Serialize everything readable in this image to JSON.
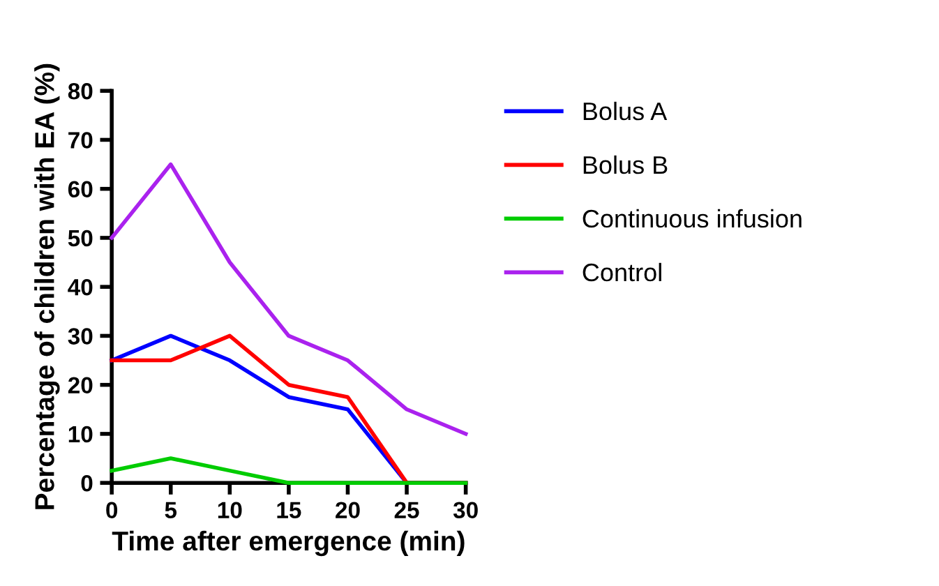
{
  "chart_data": {
    "type": "line",
    "xlabel": "Time after emergence (min)",
    "ylabel": "Percentage of children with EA (%)",
    "x": [
      0,
      5,
      10,
      15,
      20,
      25,
      30
    ],
    "series": [
      {
        "name": "Bolus A",
        "color": "#0000ff",
        "values": [
          25,
          30,
          25,
          17.5,
          15,
          0,
          0
        ]
      },
      {
        "name": "Bolus B",
        "color": "#ff0000",
        "values": [
          25,
          25,
          30,
          20,
          17.5,
          0,
          0
        ]
      },
      {
        "name": "Continuous infusion",
        "color": "#00cc00",
        "values": [
          2.5,
          5,
          2.5,
          0,
          0,
          0,
          0
        ]
      },
      {
        "name": "Control",
        "color": "#aa22ee",
        "values": [
          50,
          65,
          45,
          30,
          25,
          15,
          10
        ]
      }
    ],
    "xlim": [
      0,
      30
    ],
    "ylim": [
      0,
      80
    ],
    "xticks": [
      0,
      5,
      10,
      15,
      20,
      25,
      30
    ],
    "yticks": [
      0,
      10,
      20,
      30,
      40,
      50,
      60,
      70,
      80
    ],
    "grid": false,
    "legend": "top right",
    "marker": "none",
    "line_style": "solid"
  }
}
